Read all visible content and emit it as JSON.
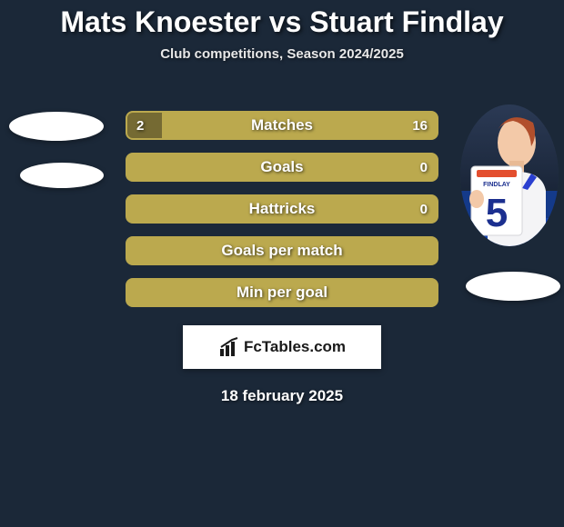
{
  "title": "Mats Knoester vs Stuart Findlay",
  "subtitle": "Club competitions, Season 2024/2025",
  "date": "18 february 2025",
  "logo_text": "FcTables.com",
  "colors": {
    "background": "#1b2838",
    "left_player": "#a3944a",
    "right_player": "#bba94e",
    "bar_border": "#bba94e",
    "bar_track": "#bba94e",
    "white": "#ffffff"
  },
  "left_player": {
    "name": "Mats Knoester",
    "has_photo": false
  },
  "right_player": {
    "name": "Stuart Findlay",
    "has_photo": true,
    "jersey_number": "5",
    "jersey_name": "FINDLAY"
  },
  "stats": [
    {
      "label": "Matches",
      "left_value": "2",
      "right_value": "16",
      "left_num": 2,
      "right_num": 16,
      "left_pct": 11.1,
      "right_pct": 88.9,
      "left_color": "#756a33",
      "right_color": "#bba94e"
    },
    {
      "label": "Goals",
      "left_value": "",
      "right_value": "0",
      "left_num": 0,
      "right_num": 0,
      "left_pct": 0,
      "right_pct": 100,
      "left_color": "#756a33",
      "right_color": "#bba94e"
    },
    {
      "label": "Hattricks",
      "left_value": "",
      "right_value": "0",
      "left_num": 0,
      "right_num": 0,
      "left_pct": 0,
      "right_pct": 100,
      "left_color": "#756a33",
      "right_color": "#bba94e"
    },
    {
      "label": "Goals per match",
      "left_value": "",
      "right_value": "",
      "left_num": 0,
      "right_num": 0,
      "left_pct": 0,
      "right_pct": 100,
      "left_color": "#756a33",
      "right_color": "#bba94e"
    },
    {
      "label": "Min per goal",
      "left_value": "",
      "right_value": "",
      "left_num": 0,
      "right_num": 0,
      "left_pct": 0,
      "right_pct": 100,
      "left_color": "#756a33",
      "right_color": "#bba94e"
    }
  ]
}
